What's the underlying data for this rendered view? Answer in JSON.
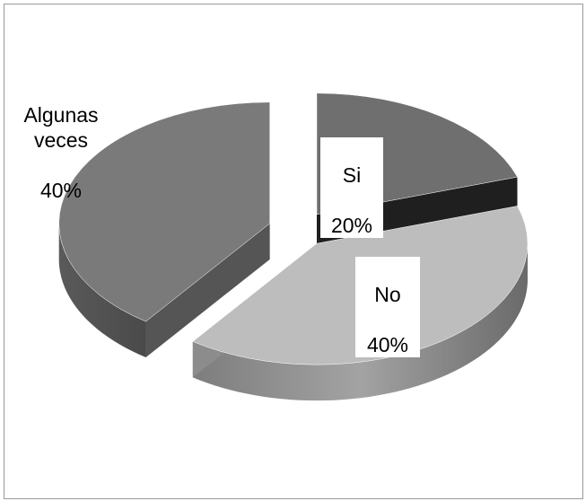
{
  "chart_data": {
    "type": "pie",
    "style": "3d-exploded",
    "slices": [
      {
        "label_line1": "Si",
        "percent_text": "20%",
        "value": 20,
        "color": "#6f6f6f"
      },
      {
        "label_line1": "No",
        "percent_text": "40%",
        "value": 40,
        "color": "#bdbdbd"
      },
      {
        "label_line1": "Algunas\nveces",
        "percent_text": "40%",
        "value": 40,
        "color": "#7a7a7a"
      }
    ],
    "legend": "none"
  }
}
